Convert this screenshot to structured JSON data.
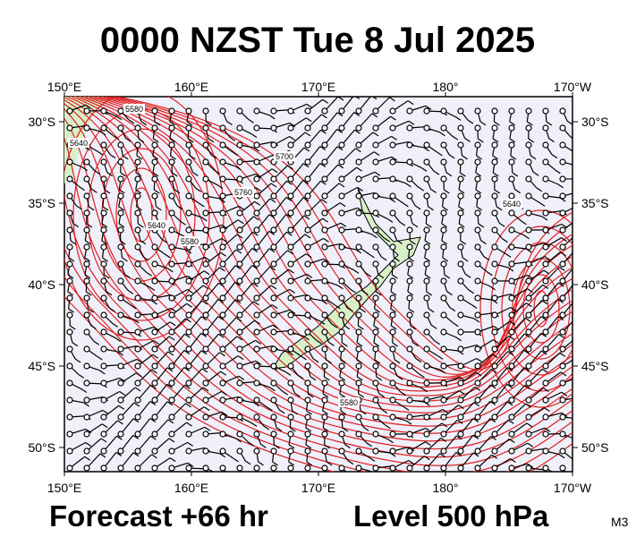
{
  "header": {
    "title": "0000 NZST Tue 8 Jul 2025"
  },
  "map": {
    "lon_labels": [
      "150°E",
      "160°E",
      "170°E",
      "180°",
      "170°W"
    ],
    "lat_labels": [
      "30°S",
      "35°S",
      "40°S",
      "45°S",
      "50°S"
    ],
    "contour_labels": [
      "5580",
      "5640",
      "5700",
      "5760",
      "5580",
      "5640",
      "5580",
      "5640"
    ]
  },
  "footer": {
    "forecast": "Forecast +66 hr",
    "level": "Level 500 hPa",
    "code": "M3"
  }
}
